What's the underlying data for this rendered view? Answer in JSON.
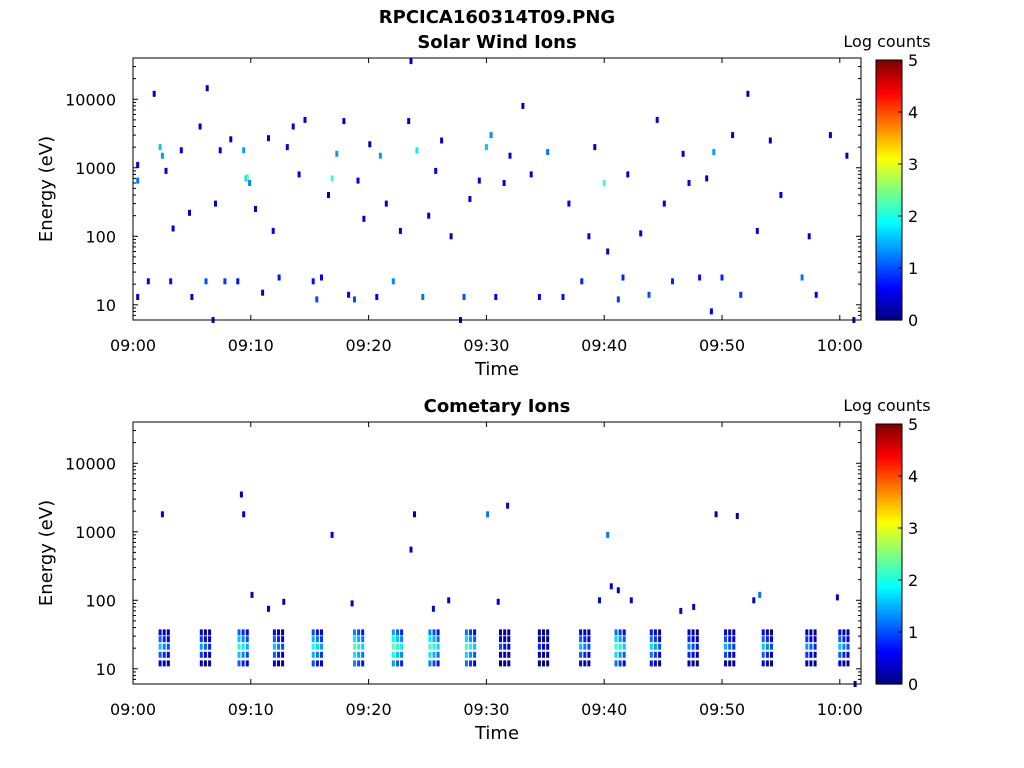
{
  "figure": {
    "title": "RPCICA160314T09.PNG"
  },
  "colorscale": [
    "#00007f",
    "#0000ff",
    "#007fff",
    "#00ffff",
    "#7fff7f",
    "#ffff00",
    "#ff7f00",
    "#ff0000",
    "#7f0000"
  ],
  "chart_data": [
    {
      "type": "heatmap",
      "title": "Solar Wind Ions",
      "xlabel": "Time",
      "ylabel": "Energy (eV)",
      "xlim": [
        "09:00",
        "10:02"
      ],
      "ylim": [
        6,
        40000
      ],
      "yscale": "log",
      "xticks": [
        "09:00",
        "09:10",
        "09:20",
        "09:30",
        "09:40",
        "09:50",
        "10:00"
      ],
      "yticks": [
        "10",
        "100",
        "1000",
        "10000"
      ],
      "colorbar": {
        "label": "Log counts",
        "range": [
          0,
          5
        ],
        "ticks": [
          "0",
          "1",
          "2",
          "3",
          "4",
          "5"
        ]
      },
      "grid": false,
      "points": [
        {
          "t": 0.4,
          "e": 13,
          "v": 0.3
        },
        {
          "t": 0.4,
          "e": 650,
          "v": 1.2
        },
        {
          "t": 0.4,
          "e": 1100,
          "v": 0.4
        },
        {
          "t": 1.3,
          "e": 22,
          "v": 0.6
        },
        {
          "t": 1.8,
          "e": 12000,
          "v": 0.3
        },
        {
          "t": 2.3,
          "e": 2000,
          "v": 1.6
        },
        {
          "t": 2.5,
          "e": 1500,
          "v": 1.4
        },
        {
          "t": 2.8,
          "e": 900,
          "v": 0.5
        },
        {
          "t": 3.2,
          "e": 22,
          "v": 0.7
        },
        {
          "t": 3.4,
          "e": 130,
          "v": 0.4
        },
        {
          "t": 4.1,
          "e": 1800,
          "v": 0.5
        },
        {
          "t": 4.8,
          "e": 220,
          "v": 0.3
        },
        {
          "t": 5.0,
          "e": 13,
          "v": 0.5
        },
        {
          "t": 5.7,
          "e": 4000,
          "v": 0.3
        },
        {
          "t": 6.3,
          "e": 14500,
          "v": 0.3
        },
        {
          "t": 6.2,
          "e": 22,
          "v": 1.0
        },
        {
          "t": 6.8,
          "e": 6,
          "v": 0.4
        },
        {
          "t": 7.0,
          "e": 300,
          "v": 0.4
        },
        {
          "t": 7.4,
          "e": 1800,
          "v": 0.5
        },
        {
          "t": 7.8,
          "e": 22,
          "v": 0.9
        },
        {
          "t": 8.3,
          "e": 2600,
          "v": 0.4
        },
        {
          "t": 8.9,
          "e": 22,
          "v": 0.7
        },
        {
          "t": 9.4,
          "e": 1800,
          "v": 1.4
        },
        {
          "t": 9.6,
          "e": 700,
          "v": 1.6
        },
        {
          "t": 9.7,
          "e": 720,
          "v": 2.2
        },
        {
          "t": 9.9,
          "e": 600,
          "v": 1.3
        },
        {
          "t": 10.4,
          "e": 250,
          "v": 0.4
        },
        {
          "t": 11.0,
          "e": 15,
          "v": 0.4
        },
        {
          "t": 11.5,
          "e": 2700,
          "v": 0.4
        },
        {
          "t": 11.9,
          "e": 120,
          "v": 0.5
        },
        {
          "t": 12.4,
          "e": 25,
          "v": 0.7
        },
        {
          "t": 13.1,
          "e": 2000,
          "v": 0.4
        },
        {
          "t": 13.6,
          "e": 4000,
          "v": 0.4
        },
        {
          "t": 14.1,
          "e": 800,
          "v": 0.5
        },
        {
          "t": 14.6,
          "e": 5000,
          "v": 0.4
        },
        {
          "t": 15.3,
          "e": 22,
          "v": 0.7
        },
        {
          "t": 15.6,
          "e": 12,
          "v": 1.0
        },
        {
          "t": 16.0,
          "e": 25,
          "v": 0.6
        },
        {
          "t": 16.6,
          "e": 400,
          "v": 0.3
        },
        {
          "t": 16.9,
          "e": 700,
          "v": 2.2
        },
        {
          "t": 17.3,
          "e": 1600,
          "v": 1.4
        },
        {
          "t": 17.9,
          "e": 4800,
          "v": 0.3
        },
        {
          "t": 18.3,
          "e": 14,
          "v": 0.6
        },
        {
          "t": 18.8,
          "e": 12,
          "v": 1.0
        },
        {
          "t": 19.1,
          "e": 650,
          "v": 0.6
        },
        {
          "t": 19.6,
          "e": 180,
          "v": 0.4
        },
        {
          "t": 20.1,
          "e": 2200,
          "v": 0.3
        },
        {
          "t": 20.7,
          "e": 13,
          "v": 0.6
        },
        {
          "t": 21.0,
          "e": 1500,
          "v": 1.4
        },
        {
          "t": 21.5,
          "e": 300,
          "v": 0.4
        },
        {
          "t": 22.1,
          "e": 22,
          "v": 1.3
        },
        {
          "t": 22.7,
          "e": 120,
          "v": 0.4
        },
        {
          "t": 23.4,
          "e": 4800,
          "v": 0.3
        },
        {
          "t": 23.6,
          "e": 36000,
          "v": 0.3
        },
        {
          "t": 24.1,
          "e": 1800,
          "v": 1.8
        },
        {
          "t": 24.6,
          "e": 13,
          "v": 1.2
        },
        {
          "t": 25.1,
          "e": 200,
          "v": 0.4
        },
        {
          "t": 25.7,
          "e": 900,
          "v": 0.5
        },
        {
          "t": 26.2,
          "e": 2500,
          "v": 0.4
        },
        {
          "t": 27.0,
          "e": 100,
          "v": 0.4
        },
        {
          "t": 27.8,
          "e": 6,
          "v": 0.3
        },
        {
          "t": 28.1,
          "e": 13,
          "v": 1.0
        },
        {
          "t": 28.6,
          "e": 350,
          "v": 0.5
        },
        {
          "t": 29.4,
          "e": 650,
          "v": 0.4
        },
        {
          "t": 30.0,
          "e": 2000,
          "v": 1.6
        },
        {
          "t": 30.4,
          "e": 3000,
          "v": 1.3
        },
        {
          "t": 30.8,
          "e": 13,
          "v": 0.6
        },
        {
          "t": 31.5,
          "e": 600,
          "v": 0.4
        },
        {
          "t": 32.0,
          "e": 1500,
          "v": 0.5
        },
        {
          "t": 33.1,
          "e": 8000,
          "v": 0.3
        },
        {
          "t": 33.8,
          "e": 800,
          "v": 0.4
        },
        {
          "t": 34.5,
          "e": 13,
          "v": 0.6
        },
        {
          "t": 35.2,
          "e": 1700,
          "v": 1.2
        },
        {
          "t": 36.5,
          "e": 13,
          "v": 0.7
        },
        {
          "t": 37.0,
          "e": 300,
          "v": 0.5
        },
        {
          "t": 38.1,
          "e": 22,
          "v": 0.8
        },
        {
          "t": 38.7,
          "e": 100,
          "v": 0.5
        },
        {
          "t": 39.2,
          "e": 2000,
          "v": 0.4
        },
        {
          "t": 40.0,
          "e": 600,
          "v": 2.2
        },
        {
          "t": 40.3,
          "e": 60,
          "v": 0.4
        },
        {
          "t": 41.2,
          "e": 12,
          "v": 0.9
        },
        {
          "t": 41.6,
          "e": 25,
          "v": 0.8
        },
        {
          "t": 42.0,
          "e": 800,
          "v": 0.4
        },
        {
          "t": 43.1,
          "e": 110,
          "v": 0.6
        },
        {
          "t": 43.8,
          "e": 14,
          "v": 1.0
        },
        {
          "t": 44.5,
          "e": 5000,
          "v": 0.4
        },
        {
          "t": 45.1,
          "e": 300,
          "v": 0.5
        },
        {
          "t": 45.8,
          "e": 22,
          "v": 0.8
        },
        {
          "t": 46.7,
          "e": 1600,
          "v": 0.4
        },
        {
          "t": 47.2,
          "e": 600,
          "v": 0.5
        },
        {
          "t": 48.1,
          "e": 25,
          "v": 0.7
        },
        {
          "t": 48.7,
          "e": 700,
          "v": 0.4
        },
        {
          "t": 49.1,
          "e": 8,
          "v": 0.5
        },
        {
          "t": 49.3,
          "e": 1700,
          "v": 1.4
        },
        {
          "t": 50.0,
          "e": 25,
          "v": 0.8
        },
        {
          "t": 50.9,
          "e": 3000,
          "v": 0.4
        },
        {
          "t": 51.6,
          "e": 14,
          "v": 0.9
        },
        {
          "t": 52.2,
          "e": 12000,
          "v": 0.3
        },
        {
          "t": 53.0,
          "e": 120,
          "v": 0.4
        },
        {
          "t": 54.1,
          "e": 2500,
          "v": 0.3
        },
        {
          "t": 55.0,
          "e": 400,
          "v": 0.5
        },
        {
          "t": 56.8,
          "e": 25,
          "v": 1.2
        },
        {
          "t": 57.4,
          "e": 100,
          "v": 0.4
        },
        {
          "t": 58.0,
          "e": 14,
          "v": 0.6
        },
        {
          "t": 59.2,
          "e": 3000,
          "v": 0.4
        },
        {
          "t": 60.6,
          "e": 1500,
          "v": 0.3
        },
        {
          "t": 61.2,
          "e": 6,
          "v": 0.3
        }
      ]
    },
    {
      "type": "heatmap",
      "title": "Cometary Ions",
      "xlabel": "Time",
      "ylabel": "Energy (eV)",
      "xlim": [
        "09:00",
        "10:02"
      ],
      "ylim": [
        6,
        40000
      ],
      "yscale": "log",
      "xticks": [
        "09:00",
        "09:10",
        "09:20",
        "09:30",
        "09:40",
        "09:50",
        "10:00"
      ],
      "yticks": [
        "10",
        "100",
        "1000",
        "10000"
      ],
      "colorbar": {
        "label": "Log counts",
        "range": [
          0,
          5
        ],
        "ticks": [
          "0",
          "1",
          "2",
          "3",
          "4",
          "5"
        ]
      },
      "grid": false,
      "bursts": [
        {
          "t": 2.3,
          "v": 1.6
        },
        {
          "t": 5.8,
          "v": 1.4
        },
        {
          "t": 9.0,
          "v": 2.1
        },
        {
          "t": 12.0,
          "v": 1.6
        },
        {
          "t": 15.3,
          "v": 2.0
        },
        {
          "t": 18.8,
          "v": 2.3
        },
        {
          "t": 22.1,
          "v": 2.4
        },
        {
          "t": 25.2,
          "v": 2.3
        },
        {
          "t": 28.3,
          "v": 2.2
        },
        {
          "t": 31.2,
          "v": 1.0
        },
        {
          "t": 34.5,
          "v": 0.8
        },
        {
          "t": 38.0,
          "v": 1.6
        },
        {
          "t": 41.0,
          "v": 2.2
        },
        {
          "t": 44.0,
          "v": 1.7
        },
        {
          "t": 47.2,
          "v": 1.3
        },
        {
          "t": 50.3,
          "v": 1.5
        },
        {
          "t": 53.5,
          "v": 1.6
        },
        {
          "t": 57.2,
          "v": 1.4
        },
        {
          "t": 60.0,
          "v": 1.6
        }
      ],
      "points": [
        {
          "t": 2.5,
          "e": 1800,
          "v": 0.4
        },
        {
          "t": 9.2,
          "e": 3500,
          "v": 0.3
        },
        {
          "t": 9.4,
          "e": 1800,
          "v": 0.3
        },
        {
          "t": 10.1,
          "e": 120,
          "v": 0.4
        },
        {
          "t": 11.5,
          "e": 75,
          "v": 0.4
        },
        {
          "t": 12.8,
          "e": 95,
          "v": 0.3
        },
        {
          "t": 16.9,
          "e": 900,
          "v": 0.5
        },
        {
          "t": 18.6,
          "e": 90,
          "v": 0.4
        },
        {
          "t": 23.6,
          "e": 550,
          "v": 0.4
        },
        {
          "t": 23.9,
          "e": 1800,
          "v": 0.3
        },
        {
          "t": 25.5,
          "e": 75,
          "v": 0.6
        },
        {
          "t": 26.8,
          "e": 100,
          "v": 0.4
        },
        {
          "t": 30.1,
          "e": 1800,
          "v": 1.2
        },
        {
          "t": 31.0,
          "e": 95,
          "v": 0.4
        },
        {
          "t": 31.8,
          "e": 2400,
          "v": 0.4
        },
        {
          "t": 39.6,
          "e": 100,
          "v": 0.4
        },
        {
          "t": 40.3,
          "e": 900,
          "v": 1.2
        },
        {
          "t": 40.6,
          "e": 160,
          "v": 0.4
        },
        {
          "t": 41.2,
          "e": 140,
          "v": 0.4
        },
        {
          "t": 42.3,
          "e": 100,
          "v": 0.4
        },
        {
          "t": 46.5,
          "e": 70,
          "v": 0.4
        },
        {
          "t": 47.6,
          "e": 80,
          "v": 0.4
        },
        {
          "t": 49.5,
          "e": 1800,
          "v": 0.3
        },
        {
          "t": 51.3,
          "e": 1700,
          "v": 0.3
        },
        {
          "t": 52.7,
          "e": 100,
          "v": 0.4
        },
        {
          "t": 53.2,
          "e": 120,
          "v": 1.2
        },
        {
          "t": 59.8,
          "e": 110,
          "v": 0.4
        },
        {
          "t": 61.3,
          "e": 6,
          "v": 0.3
        }
      ]
    }
  ]
}
